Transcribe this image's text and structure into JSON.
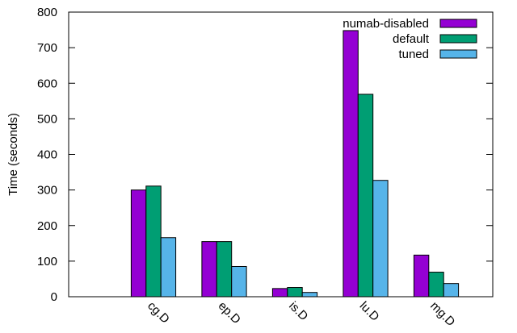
{
  "chart_data": {
    "type": "bar",
    "title": "",
    "xlabel": "",
    "ylabel": "Time (seconds)",
    "ylim": [
      0,
      800
    ],
    "yticks": [
      "0",
      "100",
      "200",
      "300",
      "400",
      "500",
      "600",
      "700",
      "800"
    ],
    "categories": [
      "cg.D",
      "ep.D",
      "is.D",
      "lu.D",
      "mg.D"
    ],
    "legend_position": "top-right",
    "series": [
      {
        "name": "numab-disabled",
        "color": "#9400d3",
        "values": [
          300,
          155,
          23,
          748,
          117
        ]
      },
      {
        "name": "default",
        "color": "#009e73",
        "values": [
          311,
          155,
          26,
          569,
          69
        ]
      },
      {
        "name": "tuned",
        "color": "#56b4e9",
        "values": [
          166,
          85,
          12,
          327,
          37
        ]
      }
    ]
  }
}
